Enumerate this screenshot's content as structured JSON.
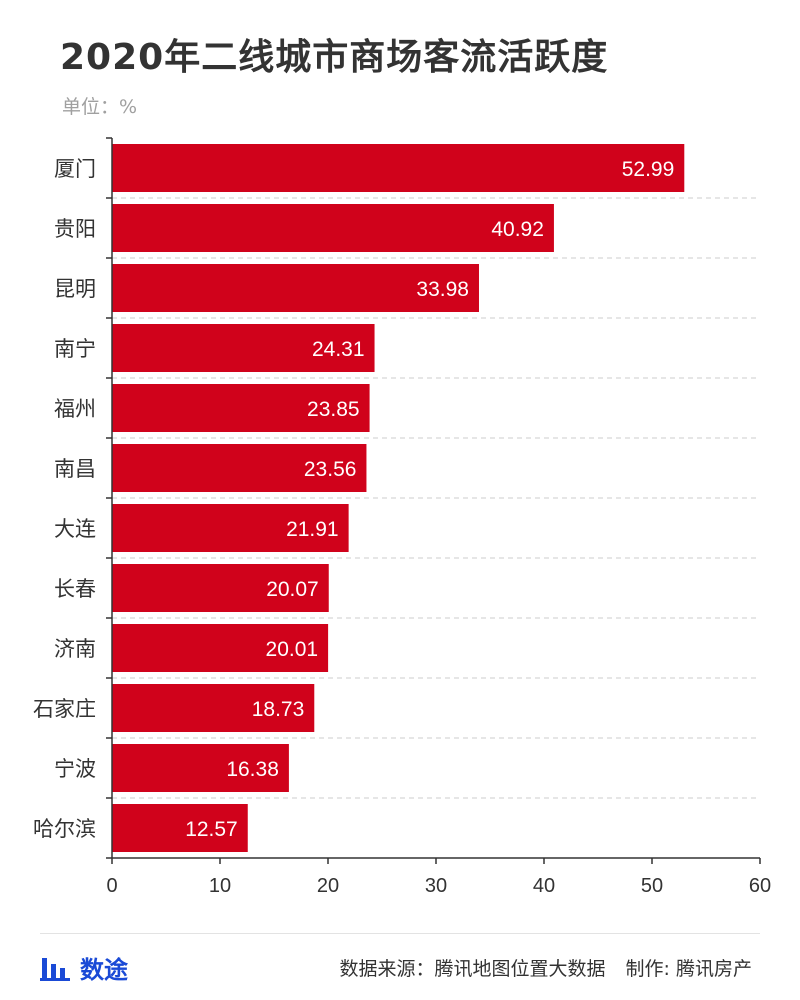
{
  "header": {
    "title": "2020年二线城市商场客流活跃度",
    "unit": "单位：%"
  },
  "footer": {
    "brand": "数途",
    "source": "数据来源：腾讯地图位置大数据",
    "producer": "制作: 腾讯房产"
  },
  "colors": {
    "bar": "#d0021b",
    "grid": "#cccccc",
    "axis": "#333333"
  },
  "icons": [
    "bar-chart-icon"
  ],
  "chart_data": {
    "type": "bar",
    "orientation": "horizontal",
    "categories": [
      "厦门",
      "贵阳",
      "昆明",
      "南宁",
      "福州",
      "南昌",
      "大连",
      "长春",
      "济南",
      "石家庄",
      "宁波",
      "哈尔滨"
    ],
    "values": [
      52.99,
      40.92,
      33.98,
      24.31,
      23.85,
      23.56,
      21.91,
      20.07,
      20.01,
      18.73,
      16.38,
      12.57
    ],
    "value_labels": [
      "52.99",
      "40.92",
      "33.98",
      "24.31",
      "23.85",
      "23.56",
      "21.91",
      "20.07",
      "20.01",
      "18.73",
      "16.38",
      "12.57"
    ],
    "xlim": [
      0,
      60
    ],
    "xticks": [
      "0",
      "10",
      "20",
      "30",
      "40",
      "50",
      "60"
    ],
    "grid": "dashed-horizontal",
    "legend": "none"
  }
}
